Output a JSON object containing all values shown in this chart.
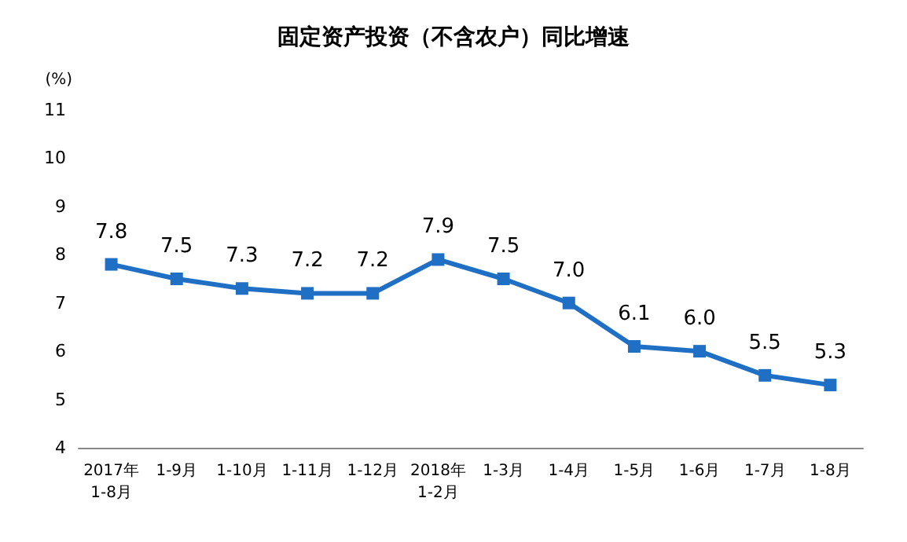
{
  "chart_data": {
    "type": "line",
    "title": "固定资产投资（不含农户）同比增速",
    "ylabel": "(%)",
    "categories": [
      "2017年\n1-8月",
      "1-9月",
      "1-10月",
      "1-11月",
      "1-12月",
      "2018年\n1-2月",
      "1-3月",
      "1-4月",
      "1-5月",
      "1-6月",
      "1-7月",
      "1-8月"
    ],
    "series": [
      {
        "color": "#1f6fc5",
        "values": [
          7.8,
          7.5,
          7.3,
          7.2,
          7.2,
          7.9,
          7.5,
          7.0,
          6.1,
          6.0,
          5.5,
          5.3
        ]
      }
    ],
    "ylim": [
      4,
      11
    ],
    "yticks": [
      4,
      5,
      6,
      7,
      8,
      9,
      10,
      11
    ],
    "value_labels": [
      "7.8",
      "7.5",
      "7.3",
      "7.2",
      "7.2",
      "7.9",
      "7.5",
      "7.0",
      "6.1",
      "6.0",
      "5.5",
      "5.3"
    ],
    "marker": "square",
    "line_style": "solid",
    "grid": false
  }
}
